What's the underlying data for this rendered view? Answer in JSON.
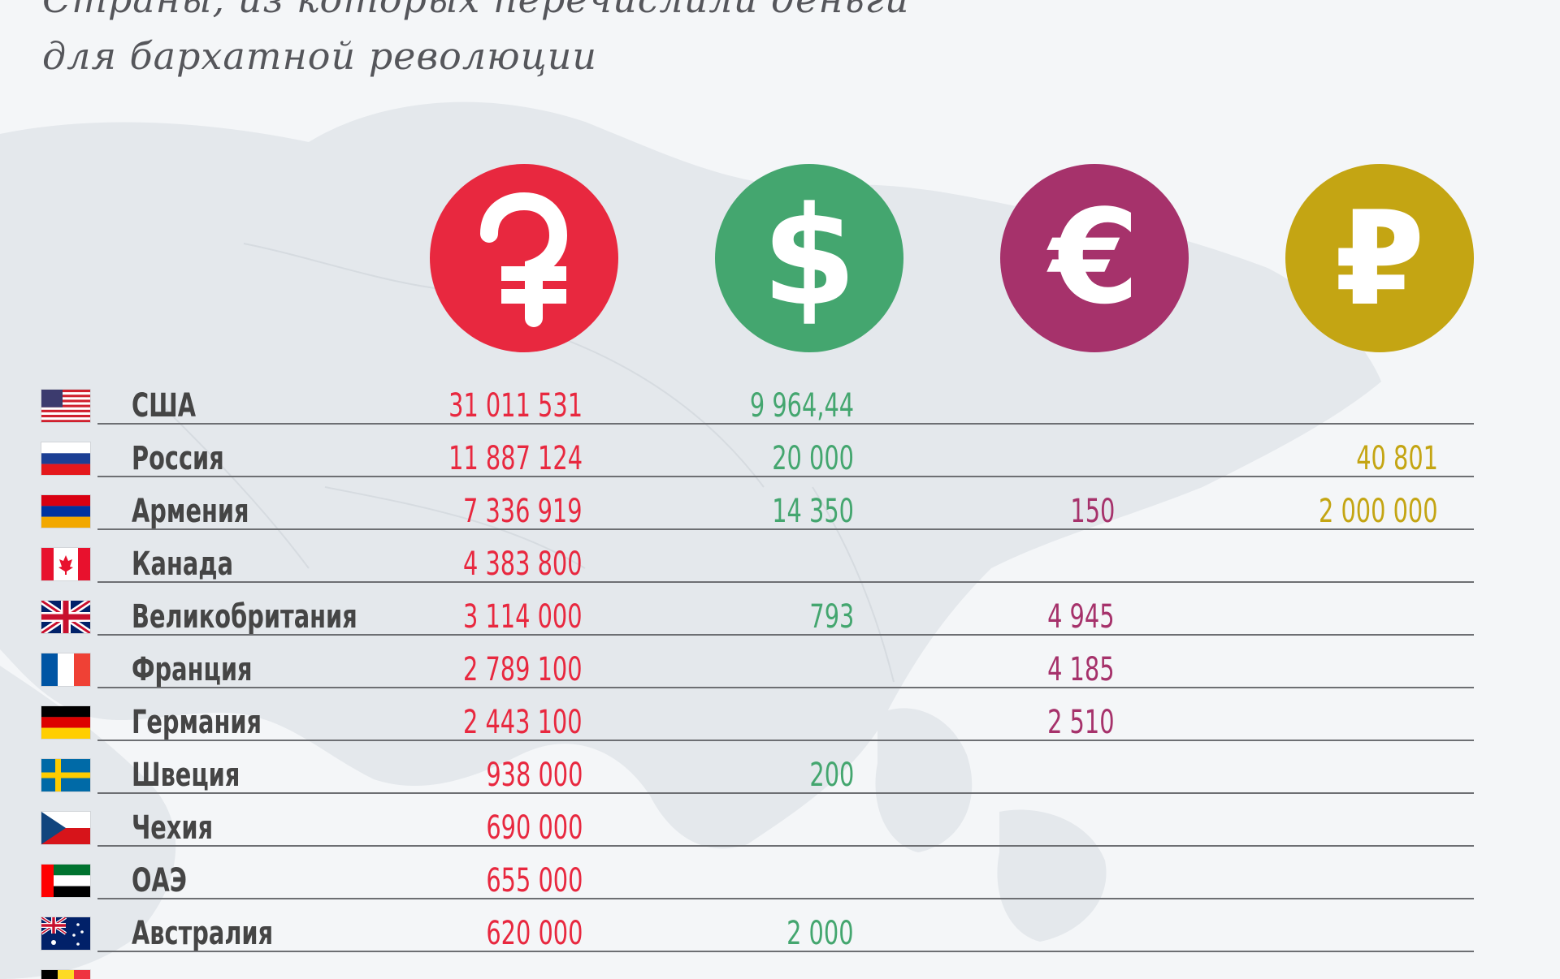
{
  "title": {
    "line1": "Страны, из которых перечислили деньги",
    "line2": "для бархатной революции"
  },
  "colors": {
    "amd": "#e8283f",
    "usd": "#44a66f",
    "eur": "#a6326b",
    "rub": "#c4a513",
    "text": "#454545",
    "divider": "#6d6f73",
    "background": "#f4f6f8"
  },
  "currencies": [
    {
      "id": "amd",
      "icon": "dram-icon"
    },
    {
      "id": "usd",
      "icon": "dollar-icon"
    },
    {
      "id": "eur",
      "icon": "euro-icon"
    },
    {
      "id": "rub",
      "icon": "ruble-icon"
    }
  ],
  "rows": [
    {
      "country": "США",
      "flag": "us-flag-icon",
      "amd": "31 011 531",
      "usd": "9 964,44",
      "eur": "",
      "rub": ""
    },
    {
      "country": "Россия",
      "flag": "russia-flag-icon",
      "amd": "11 887 124",
      "usd": "20 000",
      "eur": "",
      "rub": "40 801"
    },
    {
      "country": "Армения",
      "flag": "armenia-flag-icon",
      "amd": "7 336 919",
      "usd": "14 350",
      "eur": "150",
      "rub": "2 000 000"
    },
    {
      "country": "Канада",
      "flag": "canada-flag-icon",
      "amd": "4 383 800",
      "usd": "",
      "eur": "",
      "rub": ""
    },
    {
      "country": "Великобритания",
      "flag": "uk-flag-icon",
      "amd": "3 114 000",
      "usd": "793",
      "eur": "4 945",
      "rub": ""
    },
    {
      "country": "Франция",
      "flag": "france-flag-icon",
      "amd": "2 789 100",
      "usd": "",
      "eur": "4 185",
      "rub": ""
    },
    {
      "country": "Германия",
      "flag": "germany-flag-icon",
      "amd": "2 443 100",
      "usd": "",
      "eur": "2 510",
      "rub": ""
    },
    {
      "country": "Швеция",
      "flag": "sweden-flag-icon",
      "amd": "938 000",
      "usd": "200",
      "eur": "",
      "rub": ""
    },
    {
      "country": "Чехия",
      "flag": "czech-flag-icon",
      "amd": "690 000",
      "usd": "",
      "eur": "",
      "rub": ""
    },
    {
      "country": "ОАЭ",
      "flag": "uae-flag-icon",
      "amd": "655 000",
      "usd": "",
      "eur": "",
      "rub": ""
    },
    {
      "country": "Австралия",
      "flag": "australia-flag-icon",
      "amd": "620 000",
      "usd": "2 000",
      "eur": "",
      "rub": ""
    }
  ]
}
